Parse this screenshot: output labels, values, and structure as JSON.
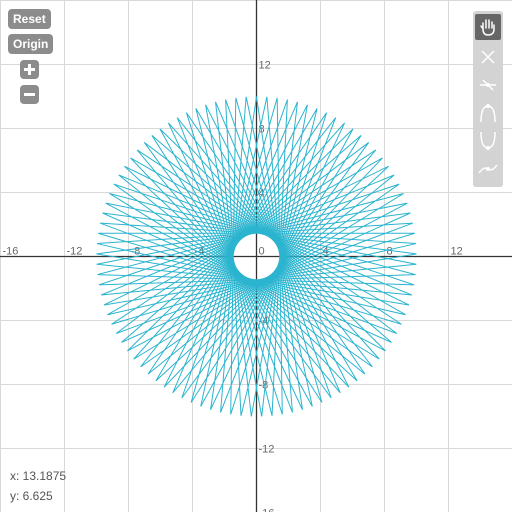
{
  "controls": {
    "reset_label": "Reset",
    "origin_label": "Origin",
    "zoom_in_icon": "plus-icon",
    "zoom_out_icon": "minus-icon"
  },
  "toolbar": {
    "tools": [
      {
        "name": "pan-tool",
        "icon": "hand-icon",
        "active": true
      },
      {
        "name": "point-tool",
        "icon": "cross-icon",
        "active": false
      },
      {
        "name": "line-tool",
        "icon": "line-icon",
        "active": false
      },
      {
        "name": "arc-top-tool",
        "icon": "arc-top-icon",
        "active": false
      },
      {
        "name": "arc-bottom-tool",
        "icon": "arc-bottom-icon",
        "active": false
      },
      {
        "name": "curve-tool",
        "icon": "curve-icon",
        "active": false
      }
    ]
  },
  "graph": {
    "x_range": [
      -16,
      16
    ],
    "y_range": [
      -16,
      16
    ],
    "x_tick_labels": [
      "-16",
      "-12",
      "-8",
      "-4",
      "0",
      "4",
      "8",
      "12"
    ],
    "y_tick_labels": [
      "12",
      "8",
      "4",
      "-4",
      "-8",
      "-12",
      "-16"
    ],
    "grid": true,
    "curve_color": "#2ab4cf",
    "axis_color": "#333333",
    "grid_color": "#d9d9d9",
    "curve": {
      "type": "star polygon",
      "outer_radius": 10,
      "inner_radius": 5.6,
      "vertices": 97,
      "step": 44
    }
  },
  "coords": {
    "x_text": "x: 13.1875",
    "y_text": "y: 6.625"
  }
}
